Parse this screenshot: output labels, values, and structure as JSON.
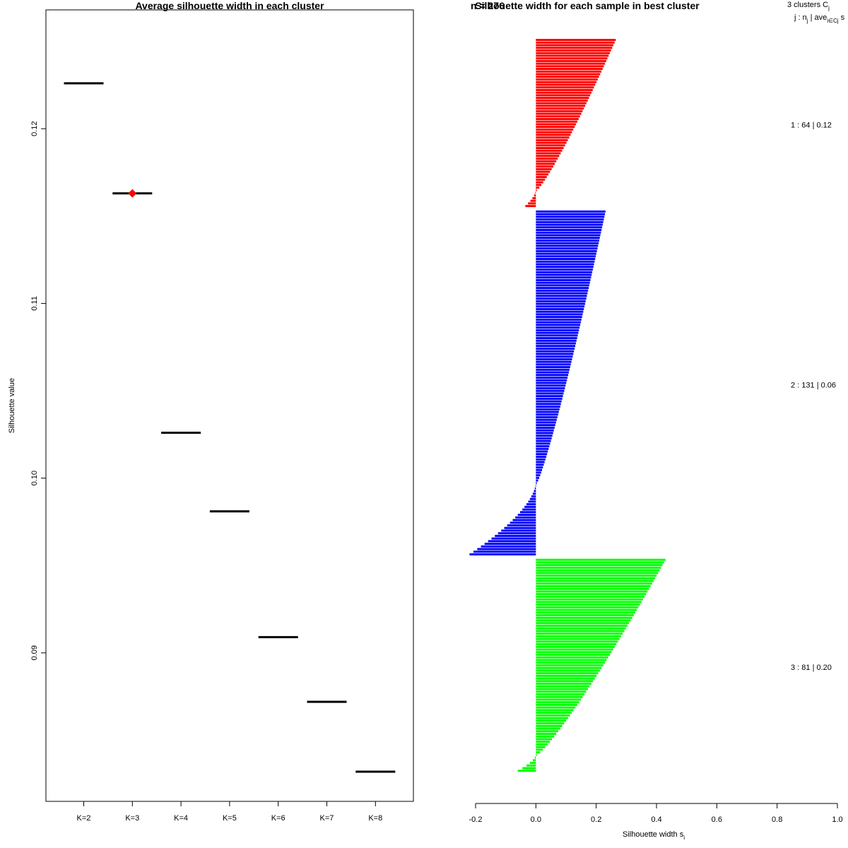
{
  "chart_data": [
    {
      "type": "scatter",
      "title": "Average silhouette width in each cluster",
      "xlabel": "",
      "ylabel": "Silhouette value",
      "categories": [
        "K=2",
        "K=3",
        "K=4",
        "K=5",
        "K=6",
        "K=7",
        "K=8"
      ],
      "values": [
        0.1226,
        0.1163,
        0.1026,
        0.0981,
        0.0909,
        0.0872,
        0.0832
      ],
      "highlight": {
        "category": "K=3",
        "color": "#ff0000",
        "marker": "diamond"
      },
      "yticks": [
        "0.09",
        "0.10",
        "0.11",
        "0.12"
      ],
      "ylim": [
        0.0815,
        0.1268
      ],
      "grid": false
    },
    {
      "type": "bar",
      "orientation": "horizontal",
      "title": "Silhouette width for each sample in best cluster",
      "overlap_text": "n = 276",
      "xlabel": "Silhouette width s",
      "xlabel_sub": "i",
      "xticks": [
        "-0.2",
        "0.0",
        "0.2",
        "0.4",
        "0.6",
        "0.8",
        "1.0"
      ],
      "xlim": [
        -0.2,
        1.0
      ],
      "legend_header": {
        "line1": "3  clusters  C",
        "line1_sub": "j",
        "line2": "j :  n",
        "line2_sub": "j",
        "line2_mid": " | ave",
        "line2_sub2": "i∈Cj",
        "line2_end": "  s"
      },
      "clusters": [
        {
          "label": "1 :   64  |  0.12",
          "n": 64,
          "avg": 0.12,
          "color": "#ff0000",
          "max": 0.27,
          "min": -0.035,
          "n_negative": 6
        },
        {
          "label": "2 :  131  |  0.06",
          "n": 131,
          "avg": 0.06,
          "color": "#0000ff",
          "max": 0.235,
          "min": -0.22,
          "n_negative": 27
        },
        {
          "label": "3 :   81  |  0.20",
          "n": 81,
          "avg": 0.2,
          "color": "#00ff00",
          "max": 0.44,
          "min": -0.06,
          "n_negative": 6
        }
      ]
    }
  ]
}
